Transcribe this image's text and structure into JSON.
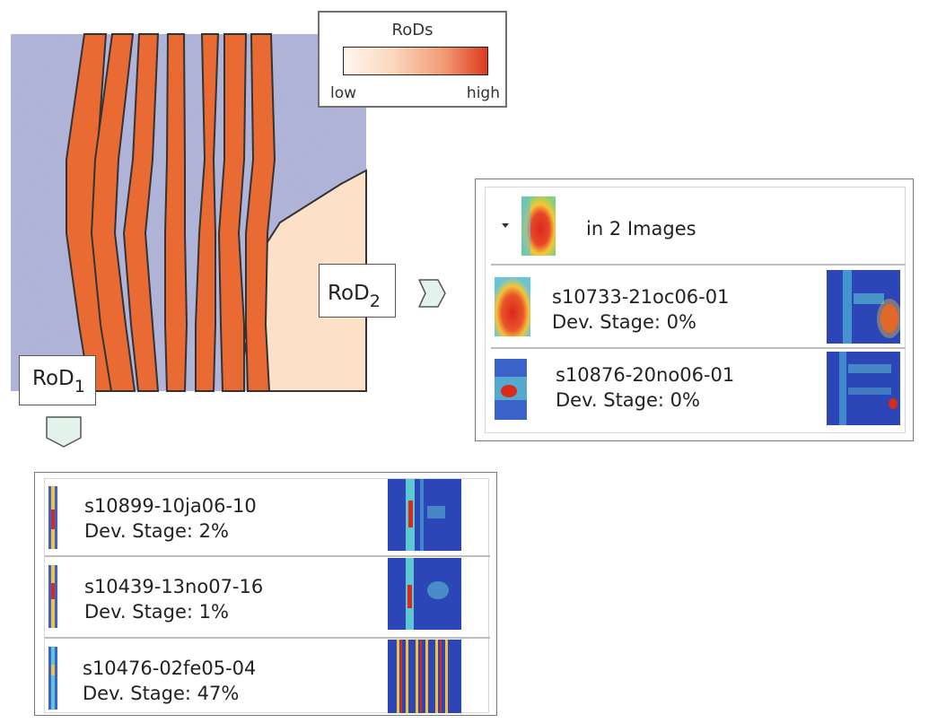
{
  "legend": {
    "title": "RoDs",
    "low": "low",
    "high": "high"
  },
  "rod_labels": {
    "rod2": "RoD",
    "rod2_sub": "2",
    "rod1": "RoD",
    "rod1_sub": "1"
  },
  "group": {
    "summary": "in 2 Images",
    "expanded": true
  },
  "rod2_results": [
    {
      "name": "s10733-21oc06-01",
      "stage": "Dev. Stage: 0%"
    },
    {
      "name": "s10876-20no06-01",
      "stage": "Dev. Stage: 0%"
    }
  ],
  "rod1_results": [
    {
      "name": "s10899-10ja06-10",
      "stage": "Dev. Stage: 2%"
    },
    {
      "name": "s10439-13no07-16",
      "stage": "Dev. Stage: 1%"
    },
    {
      "name": "s10476-02fe05-04",
      "stage": "Dev. Stage: 47%"
    }
  ],
  "colors": {
    "image_bg": "#aeb1d6",
    "rod1_fill": "#ea6a33",
    "rod2_fill": "#fde0c8",
    "button_fill": "#e3f2ea",
    "heat_blue": "#2c46b8",
    "heat_red": "#d92a1a"
  },
  "icons": {
    "expand": "caret-down-icon",
    "arrow": "chevron-arrow-icon"
  }
}
